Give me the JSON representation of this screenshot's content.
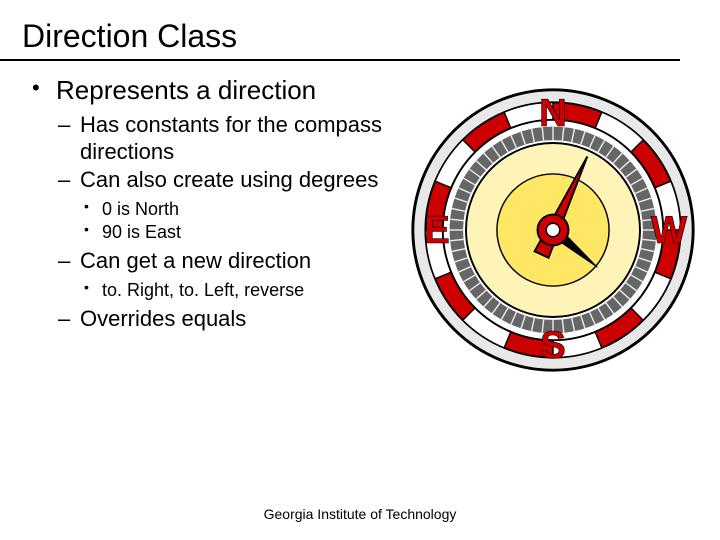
{
  "title": "Direction Class",
  "bullets": {
    "l1": "Represents a direction",
    "l2a": "Has constants for the compass directions",
    "l2b": "Can also create using degrees",
    "l3a": "0 is North",
    "l3b": "90 is East",
    "l2c": "Can get a new direction",
    "l3c": "to. Right, to. Left, reverse",
    "l2d": "Overrides equals"
  },
  "footer": "Georgia Institute of Technology",
  "compass": {
    "size": 290,
    "labels": {
      "n": "N",
      "e": "E",
      "s": "S",
      "w": "W"
    },
    "colors": {
      "outline": "#000000",
      "ring_outer": "#e8e8e8",
      "ring_red": "#cc0000",
      "ring_white": "#ffffff",
      "tick_ring": "#666666",
      "face": "#fff4b8",
      "face_inner": "#ffe766",
      "needle": "#cc0000",
      "needle2": "#000000",
      "hub_outer": "#cc0000",
      "hub_inner": "#ffffff",
      "label": "#cc0000"
    },
    "label_fontsize": 40,
    "needle_angle_deg": 25,
    "small_needle_angle_deg": 130
  }
}
